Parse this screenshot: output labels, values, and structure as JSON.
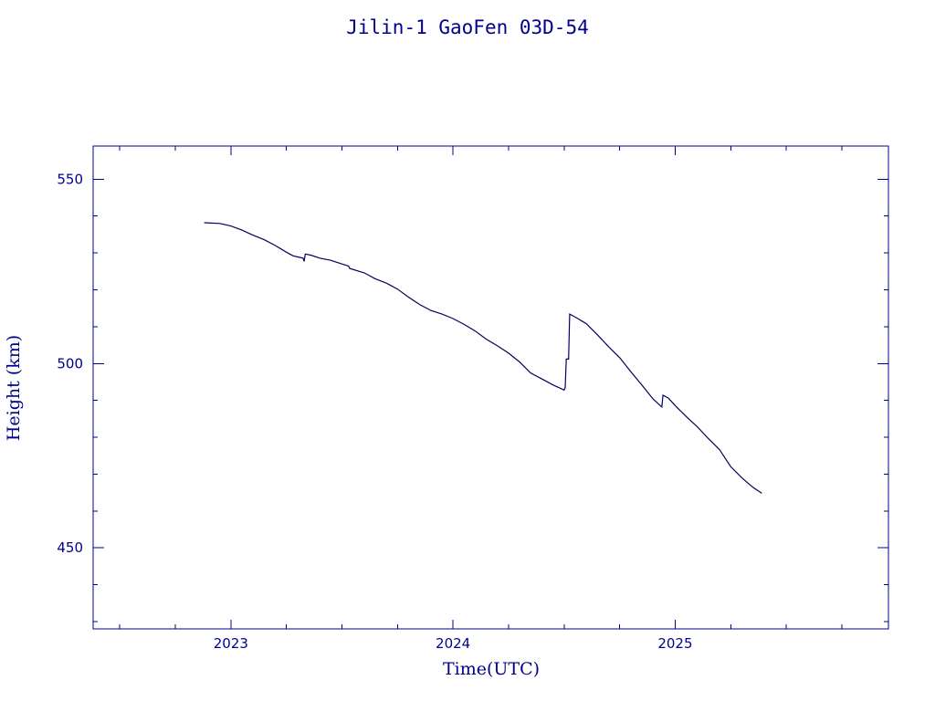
{
  "chart_data": {
    "type": "line",
    "title": "Jilin-1 GaoFen 03D-54",
    "xlabel": "Time(UTC)",
    "ylabel": "Height (km)",
    "xlim": [
      2022.38,
      2025.96
    ],
    "ylim": [
      428,
      559
    ],
    "x_ticks": [
      2023,
      2024,
      2025
    ],
    "x_tick_labels": [
      "2023",
      "2024",
      "2025"
    ],
    "x_minor_step": 0.25,
    "y_ticks": [
      450,
      500,
      550
    ],
    "y_tick_labels": [
      "450",
      "500",
      "550"
    ],
    "y_minor_step": 10,
    "grid": false,
    "colors": {
      "axes": "#00008b",
      "series": "#00005f",
      "background": "#ffffff"
    },
    "series": [
      {
        "points": [
          [
            2022.88,
            538.2
          ],
          [
            2022.95,
            538.0
          ],
          [
            2023.0,
            537.3
          ],
          [
            2023.05,
            536.2
          ],
          [
            2023.1,
            534.8
          ],
          [
            2023.15,
            533.6
          ],
          [
            2023.2,
            532.0
          ],
          [
            2023.25,
            530.2
          ],
          [
            2023.28,
            529.2
          ],
          [
            2023.31,
            528.8
          ],
          [
            2023.325,
            528.6
          ],
          [
            2023.33,
            527.7
          ],
          [
            2023.335,
            529.7
          ],
          [
            2023.36,
            529.4
          ],
          [
            2023.4,
            528.6
          ],
          [
            2023.45,
            528.0
          ],
          [
            2023.5,
            527.0
          ],
          [
            2023.53,
            526.4
          ],
          [
            2023.535,
            525.8
          ],
          [
            2023.6,
            524.6
          ],
          [
            2023.65,
            523.0
          ],
          [
            2023.7,
            521.8
          ],
          [
            2023.75,
            520.2
          ],
          [
            2023.8,
            518.0
          ],
          [
            2023.85,
            516.0
          ],
          [
            2023.9,
            514.4
          ],
          [
            2023.95,
            513.4
          ],
          [
            2024.0,
            512.2
          ],
          [
            2024.05,
            510.6
          ],
          [
            2024.1,
            508.8
          ],
          [
            2024.15,
            506.6
          ],
          [
            2024.2,
            504.8
          ],
          [
            2024.25,
            502.8
          ],
          [
            2024.3,
            500.4
          ],
          [
            2024.35,
            497.4
          ],
          [
            2024.4,
            495.8
          ],
          [
            2024.45,
            494.2
          ],
          [
            2024.5,
            492.8
          ],
          [
            2024.505,
            493.5
          ],
          [
            2024.51,
            501.2
          ],
          [
            2024.52,
            501.2
          ],
          [
            2024.525,
            513.4
          ],
          [
            2024.55,
            512.6
          ],
          [
            2024.6,
            510.8
          ],
          [
            2024.65,
            507.8
          ],
          [
            2024.7,
            504.6
          ],
          [
            2024.75,
            501.6
          ],
          [
            2024.8,
            497.8
          ],
          [
            2024.85,
            494.2
          ],
          [
            2024.9,
            490.4
          ],
          [
            2024.94,
            488.2
          ],
          [
            2024.945,
            491.4
          ],
          [
            2024.97,
            490.6
          ],
          [
            2025.0,
            488.6
          ],
          [
            2025.05,
            485.6
          ],
          [
            2025.1,
            482.8
          ],
          [
            2025.15,
            479.6
          ],
          [
            2025.2,
            476.6
          ],
          [
            2025.25,
            472.0
          ],
          [
            2025.3,
            469.0
          ],
          [
            2025.35,
            466.4
          ],
          [
            2025.39,
            464.8
          ]
        ]
      }
    ]
  }
}
